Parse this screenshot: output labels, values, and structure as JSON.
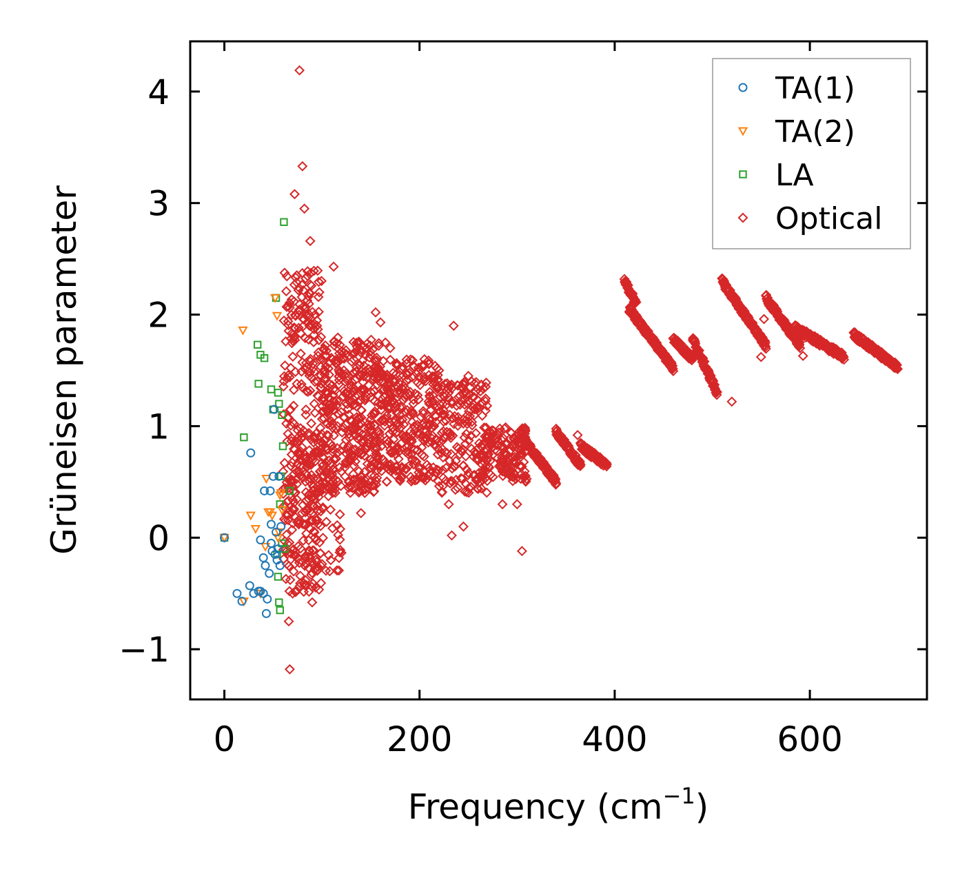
{
  "chart_data": {
    "type": "scatter",
    "xlabel": "Frequency (cm",
    "xlabel_sup": "−1",
    "xlabel_suffix": ")",
    "ylabel": "Grüneisen parameter",
    "xlim": [
      -35,
      720
    ],
    "ylim": [
      -1.45,
      4.45
    ],
    "xticks": [
      0,
      200,
      400,
      600
    ],
    "xtick_labels": [
      "0",
      "200",
      "400",
      "600"
    ],
    "yticks": [
      -1,
      0,
      1,
      2,
      3,
      4
    ],
    "ytick_labels": [
      "−1",
      "0",
      "1",
      "2",
      "3",
      "4"
    ],
    "legend_position": "upper right",
    "series": [
      {
        "name": "TA(1)",
        "marker": "circle",
        "color": "#1f77b4",
        "x": [
          0,
          13,
          18,
          26,
          27,
          30,
          35,
          37,
          37,
          40,
          40,
          41,
          42,
          43,
          44,
          46,
          47,
          48,
          48,
          49,
          50,
          51,
          52,
          53,
          54,
          55,
          56,
          57,
          58
        ],
        "y": [
          0.0,
          -0.5,
          -0.57,
          -0.43,
          0.76,
          -0.5,
          -0.48,
          -0.02,
          -0.48,
          -0.18,
          -0.5,
          0.42,
          -0.25,
          -0.68,
          -0.55,
          -0.32,
          0.42,
          -0.05,
          0.12,
          -0.12,
          0.55,
          1.15,
          -0.15,
          0.05,
          -0.2,
          -0.1,
          0.55,
          -0.25,
          0.1
        ]
      },
      {
        "name": "TA(2)",
        "marker": "triangle",
        "color": "#ff7f0e",
        "x": [
          0,
          19,
          20,
          27,
          32,
          37,
          42,
          43,
          45,
          47,
          49,
          52,
          54,
          55,
          56,
          57,
          58,
          59
        ],
        "y": [
          0.0,
          1.86,
          -0.57,
          0.2,
          0.08,
          -0.5,
          -0.08,
          0.53,
          0.23,
          0.23,
          0.2,
          2.15,
          1.99,
          0.0,
          0.05,
          0.38,
          0.4,
          0.25
        ]
      },
      {
        "name": "LA",
        "marker": "square",
        "color": "#2ca02c",
        "x": [
          0,
          20,
          34,
          35,
          37,
          41,
          48,
          50,
          53,
          54,
          55,
          55,
          56,
          56,
          57,
          57,
          58,
          59,
          59,
          60,
          61,
          62,
          67
        ],
        "y": [
          0.0,
          0.9,
          1.73,
          1.38,
          1.64,
          1.61,
          1.33,
          1.15,
          2.15,
          -0.15,
          1.3,
          -0.35,
          1.2,
          -0.58,
          -0.65,
          0.3,
          0.55,
          1.1,
          -0.05,
          0.82,
          2.83,
          -0.1,
          0.42
        ]
      },
      {
        "name": "Optical",
        "marker": "diamond",
        "color": "#d62728",
        "x": [
          77,
          80,
          72,
          88,
          82,
          93,
          112,
          95,
          100,
          105,
          155,
          160,
          165,
          170,
          175,
          180,
          190,
          205,
          210,
          215,
          220,
          225,
          230,
          235,
          240,
          250,
          260,
          265,
          275,
          285,
          300,
          305,
          340,
          362,
          233,
          245,
          67,
          66,
          70,
          90,
          108,
          140,
          230,
          285,
          520,
          550,
          593,
          553
        ],
        "y": [
          4.19,
          3.33,
          3.08,
          2.66,
          2.95,
          2.0,
          2.43,
          1.9,
          1.6,
          1.3,
          2.02,
          1.93,
          1.75,
          1.7,
          1.4,
          1.3,
          1.1,
          1.6,
          1.2,
          1.0,
          1.5,
          0.9,
          1.3,
          1.9,
          0.8,
          1.45,
          0.8,
          0.6,
          0.9,
          0.7,
          0.3,
          -0.12,
          0.95,
          0.92,
          0.02,
          0.1,
          -1.18,
          -0.75,
          -0.5,
          -0.58,
          -0.3,
          0.22,
          0.3,
          0.3,
          1.22,
          1.62,
          1.63,
          1.96
        ],
        "segments": [
          {
            "x0": 410,
            "x1": 422,
            "ymax": 2.3,
            "ymin": 2.1
          },
          {
            "x0": 415,
            "x1": 460,
            "ymax": 2.05,
            "ymin": 1.52
          },
          {
            "x0": 460,
            "x1": 480,
            "ymax": 1.78,
            "ymin": 1.6
          },
          {
            "x0": 480,
            "x1": 505,
            "ymax": 1.78,
            "ymin": 1.3
          },
          {
            "x0": 510,
            "x1": 555,
            "ymax": 2.3,
            "ymin": 1.72
          },
          {
            "x0": 555,
            "x1": 590,
            "ymax": 2.15,
            "ymin": 1.72
          },
          {
            "x0": 585,
            "x1": 635,
            "ymax": 1.88,
            "ymin": 1.62
          },
          {
            "x0": 645,
            "x1": 690,
            "ymax": 1.82,
            "ymin": 1.53
          },
          {
            "x0": 340,
            "x1": 365,
            "ymax": 0.95,
            "ymin": 0.65
          },
          {
            "x0": 365,
            "x1": 392,
            "ymax": 0.82,
            "ymin": 0.65
          },
          {
            "x0": 305,
            "x1": 340,
            "ymax": 0.9,
            "ymin": 0.5
          }
        ]
      }
    ]
  }
}
